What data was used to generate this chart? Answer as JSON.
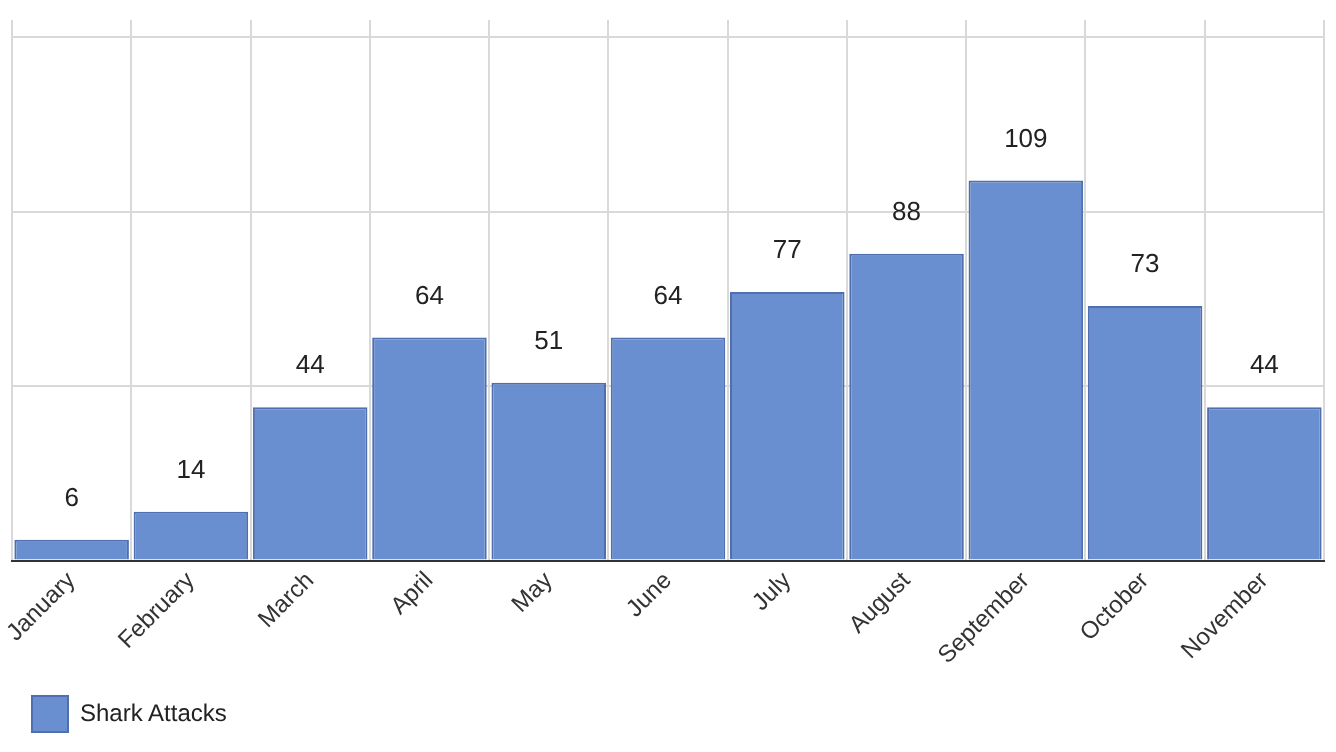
{
  "chart_data": {
    "type": "bar",
    "categories": [
      "January",
      "February",
      "March",
      "April",
      "May",
      "June",
      "July",
      "August",
      "September",
      "October",
      "November"
    ],
    "series": [
      {
        "name": "Shark Attacks",
        "color": "#6a8fd0",
        "values": [
          6,
          14,
          44,
          64,
          51,
          64,
          77,
          88,
          109,
          73,
          44
        ]
      }
    ],
    "ylim": [
      0,
      155
    ],
    "yticks": [
      {
        "value": 0,
        "label": null
      },
      {
        "value": 50,
        "label": null
      },
      {
        "value": 100,
        "label": null
      },
      {
        "value": 150,
        "label": null
      }
    ],
    "tick_labels": "x",
    "grid": true,
    "legend": "bottom left",
    "data_labels": true
  }
}
